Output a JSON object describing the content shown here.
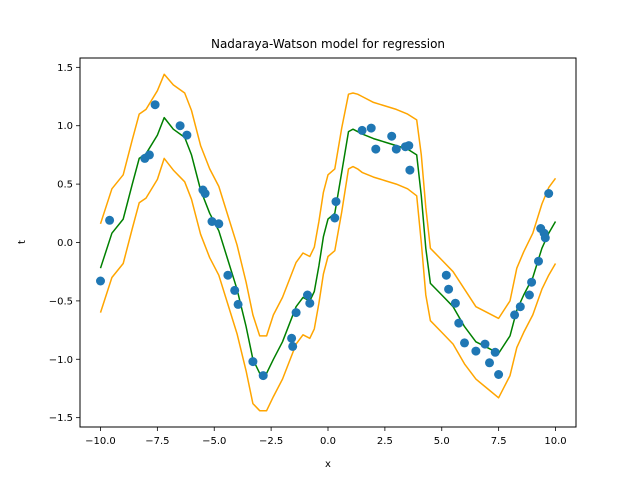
{
  "chart_data": {
    "type": "line",
    "title": "Nadaraya-Watson model for regression",
    "xlabel": "x",
    "ylabel": "t",
    "xlim": [
      -10.9,
      10.9
    ],
    "ylim": [
      -1.58,
      1.58
    ],
    "xticks": [
      -10.0,
      -7.5,
      -5.0,
      -2.5,
      0.0,
      2.5,
      5.0,
      7.5,
      10.0
    ],
    "xtick_labels": [
      "−10.0",
      "−7.5",
      "−5.0",
      "−2.5",
      "0.0",
      "2.5",
      "5.0",
      "7.5",
      "10.0"
    ],
    "yticks": [
      -1.5,
      -1.0,
      -0.5,
      0.0,
      0.5,
      1.0,
      1.5
    ],
    "ytick_labels": [
      "−1.5",
      "−1.0",
      "−0.5",
      "0.0",
      "0.5",
      "1.0",
      "1.5"
    ],
    "grid": false,
    "colors": {
      "points": "#1f77b4",
      "mean": "#008000",
      "band": "#ffa500"
    },
    "scatter": {
      "x": [
        -10.0,
        -9.6,
        -8.05,
        -7.85,
        -7.6,
        -6.5,
        -6.2,
        -5.5,
        -5.4,
        -5.1,
        -4.8,
        -4.4,
        -4.1,
        -3.95,
        -3.3,
        -2.85,
        -1.6,
        -1.55,
        -1.4,
        -0.9,
        -0.8,
        0.3,
        0.35,
        1.5,
        1.9,
        2.1,
        2.8,
        3.0,
        3.4,
        3.55,
        3.6,
        5.2,
        5.3,
        5.6,
        5.75,
        6.0,
        6.5,
        6.9,
        7.1,
        7.35,
        7.5,
        8.2,
        8.45,
        8.85,
        8.95,
        9.25,
        9.35,
        9.5,
        9.55,
        9.7
      ],
      "y": [
        -0.33,
        0.19,
        0.72,
        0.75,
        1.18,
        1.0,
        0.92,
        0.45,
        0.42,
        0.18,
        0.16,
        -0.28,
        -0.41,
        -0.53,
        -1.02,
        -1.14,
        -0.82,
        -0.89,
        -0.6,
        -0.45,
        -0.52,
        0.21,
        0.35,
        0.96,
        0.98,
        0.8,
        0.91,
        0.8,
        0.82,
        0.83,
        0.62,
        -0.28,
        -0.4,
        -0.52,
        -0.69,
        -0.86,
        -0.93,
        -0.87,
        -1.03,
        -0.94,
        -1.13,
        -0.62,
        -0.55,
        -0.45,
        -0.34,
        -0.16,
        0.12,
        0.08,
        0.04,
        0.42
      ]
    },
    "mean_line": {
      "x": [
        -10.0,
        -9.5,
        -9.0,
        -8.6,
        -8.3,
        -8.0,
        -7.5,
        -7.2,
        -6.8,
        -6.3,
        -6.0,
        -5.6,
        -5.2,
        -4.8,
        -4.4,
        -4.0,
        -3.6,
        -3.3,
        -3.0,
        -2.7,
        -2.4,
        -2.0,
        -1.7,
        -1.4,
        -1.1,
        -0.8,
        -0.6,
        -0.4,
        -0.2,
        0.0,
        0.3,
        0.6,
        0.9,
        1.1,
        1.3,
        1.5,
        2.0,
        2.5,
        3.0,
        3.5,
        3.9,
        4.1,
        4.3,
        4.5,
        5.0,
        5.5,
        6.0,
        6.5,
        7.0,
        7.5,
        8.0,
        8.3,
        8.6,
        9.0,
        9.4,
        9.7,
        10.0
      ],
      "y": [
        -0.22,
        0.08,
        0.2,
        0.5,
        0.72,
        0.76,
        0.92,
        1.07,
        0.97,
        0.9,
        0.75,
        0.45,
        0.25,
        0.1,
        -0.15,
        -0.4,
        -0.72,
        -1.0,
        -1.12,
        -1.12,
        -1.0,
        -0.85,
        -0.7,
        -0.55,
        -0.47,
        -0.5,
        -0.42,
        -0.2,
        0.05,
        0.2,
        0.25,
        0.6,
        0.95,
        0.97,
        0.95,
        0.93,
        0.89,
        0.86,
        0.83,
        0.8,
        0.75,
        0.4,
        -0.05,
        -0.35,
        -0.45,
        -0.55,
        -0.72,
        -0.85,
        -0.9,
        -0.95,
        -0.8,
        -0.58,
        -0.45,
        -0.3,
        -0.05,
        0.08,
        0.18
      ]
    },
    "upper_band": {
      "x": [
        -10.0,
        -9.5,
        -9.0,
        -8.6,
        -8.3,
        -8.0,
        -7.5,
        -7.2,
        -6.8,
        -6.3,
        -6.0,
        -5.6,
        -5.2,
        -4.8,
        -4.4,
        -4.0,
        -3.6,
        -3.3,
        -3.0,
        -2.7,
        -2.4,
        -2.0,
        -1.7,
        -1.4,
        -1.1,
        -0.8,
        -0.6,
        -0.4,
        -0.2,
        0.0,
        0.3,
        0.6,
        0.9,
        1.1,
        1.3,
        1.5,
        2.0,
        2.5,
        3.0,
        3.5,
        3.9,
        4.1,
        4.3,
        4.5,
        5.0,
        5.5,
        6.0,
        6.5,
        7.0,
        7.5,
        8.0,
        8.3,
        8.6,
        9.0,
        9.4,
        9.7,
        10.0
      ],
      "y": [
        0.16,
        0.46,
        0.58,
        0.88,
        1.1,
        1.14,
        1.3,
        1.44,
        1.35,
        1.28,
        1.13,
        0.83,
        0.63,
        0.48,
        0.23,
        -0.02,
        -0.34,
        -0.62,
        -0.8,
        -0.8,
        -0.62,
        -0.47,
        -0.32,
        -0.17,
        -0.09,
        -0.12,
        -0.04,
        0.18,
        0.43,
        0.58,
        0.63,
        0.98,
        1.27,
        1.28,
        1.27,
        1.25,
        1.2,
        1.17,
        1.14,
        1.1,
        1.05,
        0.75,
        0.3,
        -0.05,
        -0.15,
        -0.25,
        -0.4,
        -0.55,
        -0.6,
        -0.65,
        -0.5,
        -0.22,
        -0.08,
        0.08,
        0.33,
        0.47,
        0.55
      ]
    },
    "lower_band": {
      "x": [
        -10.0,
        -9.5,
        -9.0,
        -8.6,
        -8.3,
        -8.0,
        -7.5,
        -7.2,
        -6.8,
        -6.3,
        -6.0,
        -5.6,
        -5.2,
        -4.8,
        -4.4,
        -4.0,
        -3.6,
        -3.3,
        -3.0,
        -2.7,
        -2.4,
        -2.0,
        -1.7,
        -1.4,
        -1.1,
        -0.8,
        -0.6,
        -0.4,
        -0.2,
        0.0,
        0.3,
        0.6,
        0.9,
        1.1,
        1.3,
        1.5,
        2.0,
        2.5,
        3.0,
        3.5,
        3.9,
        4.1,
        4.3,
        4.5,
        5.0,
        5.5,
        6.0,
        6.5,
        7.0,
        7.5,
        8.0,
        8.3,
        8.6,
        9.0,
        9.4,
        9.7,
        10.0
      ],
      "y": [
        -0.6,
        -0.3,
        -0.18,
        0.12,
        0.34,
        0.38,
        0.54,
        0.72,
        0.62,
        0.52,
        0.37,
        0.07,
        -0.13,
        -0.28,
        -0.53,
        -0.78,
        -1.1,
        -1.38,
        -1.44,
        -1.44,
        -1.32,
        -1.17,
        -1.02,
        -0.87,
        -0.79,
        -0.82,
        -0.74,
        -0.52,
        -0.27,
        -0.12,
        -0.07,
        0.26,
        0.63,
        0.65,
        0.63,
        0.6,
        0.56,
        0.53,
        0.5,
        0.46,
        0.4,
        0.0,
        -0.45,
        -0.67,
        -0.77,
        -0.87,
        -1.04,
        -1.17,
        -1.25,
        -1.33,
        -1.14,
        -0.9,
        -0.77,
        -0.62,
        -0.4,
        -0.28,
        -0.18
      ]
    }
  }
}
